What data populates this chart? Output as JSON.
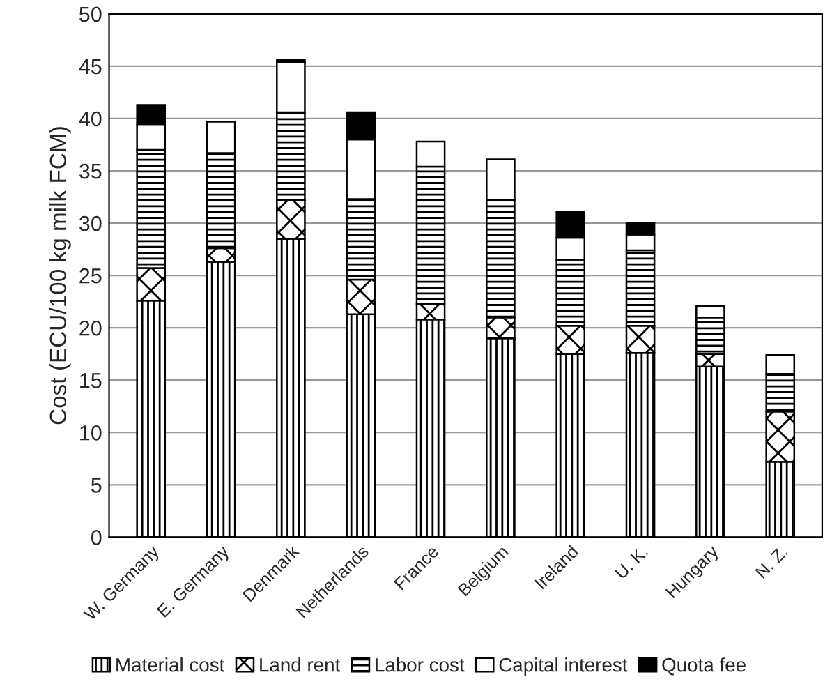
{
  "chart_data": {
    "type": "bar",
    "stacked": true,
    "ylabel": "Cost (ECU/100 kg milk FCM)",
    "categories": [
      "W. Germany",
      "E. Germany",
      "Denmark",
      "Netherlands",
      "France",
      "Belgium",
      "Ireland",
      "U. K.",
      "Hungary",
      "N. Z."
    ],
    "series": [
      {
        "name": "Material cost",
        "color": "#000000",
        "values": [
          22.6,
          26.3,
          28.5,
          21.3,
          20.8,
          19.0,
          17.5,
          17.6,
          16.3,
          7.2
        ]
      },
      {
        "name": "Land rent",
        "color": "#000000",
        "values": [
          3.1,
          1.3,
          3.7,
          3.3,
          1.5,
          2.0,
          2.7,
          2.6,
          1.2,
          4.8
        ]
      },
      {
        "name": "Labor cost",
        "color": "#000000",
        "values": [
          11.3,
          9.1,
          8.4,
          7.7,
          13.1,
          11.2,
          6.3,
          7.2,
          3.5,
          3.6
        ]
      },
      {
        "name": "Capital interest",
        "color": "#ffffff",
        "values": [
          2.4,
          3.0,
          4.8,
          5.7,
          2.4,
          3.9,
          2.1,
          1.5,
          1.1,
          1.8
        ]
      },
      {
        "name": "Quota fee",
        "color": "#000000",
        "values": [
          1.9,
          null,
          0.2,
          2.6,
          null,
          null,
          2.5,
          1.1,
          null,
          null
        ]
      }
    ],
    "ylim": [
      0,
      50
    ],
    "yticks": [
      0,
      5,
      10,
      15,
      20,
      25,
      30,
      35,
      40,
      45,
      50
    ],
    "grid": "y",
    "legend": "bottom"
  }
}
